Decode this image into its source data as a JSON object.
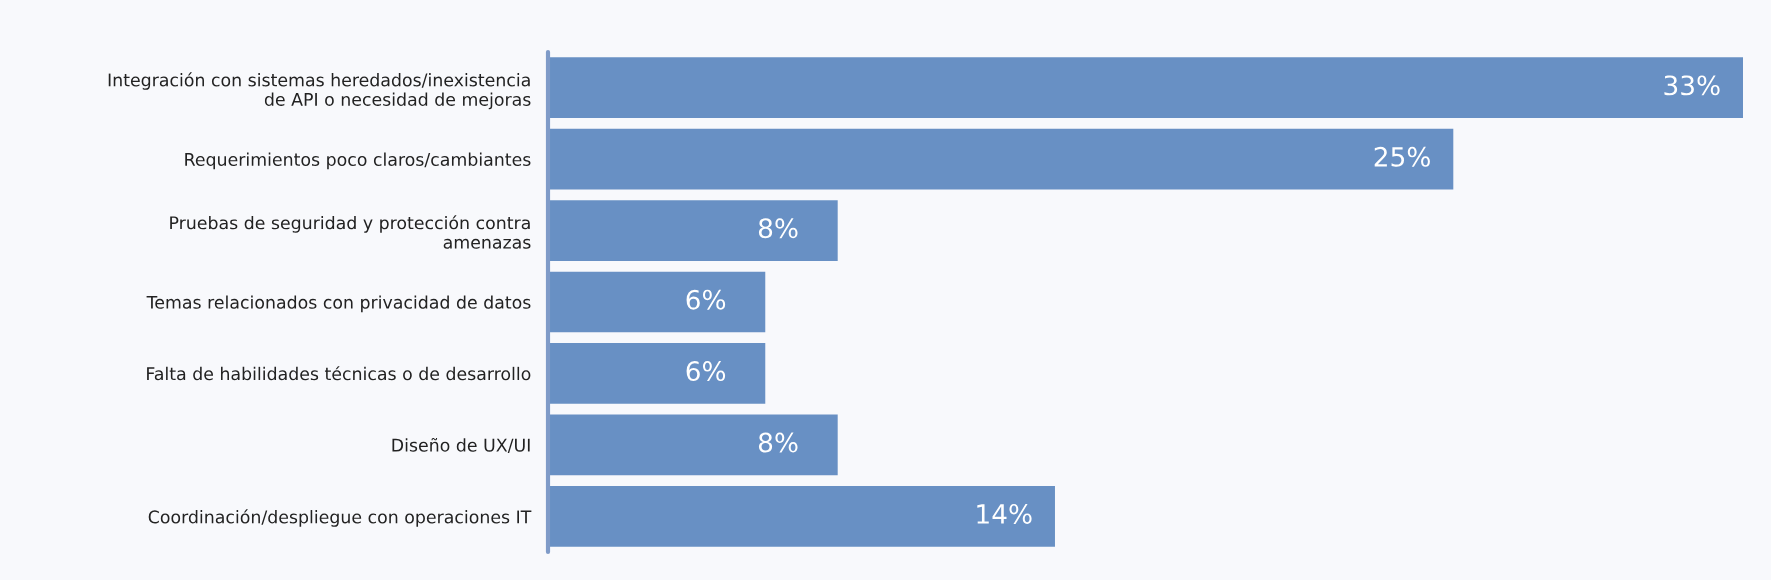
{
  "chart_data": {
    "type": "bar",
    "orientation": "horizontal",
    "categories": [
      "Integración con sistemas heredados/inexistencia\nde API o necesidad de mejoras",
      "Requerimientos poco claros/cambiantes",
      "Pruebas de seguridad y protección contra\namenazas",
      "Temas relacionados con privacidad de datos",
      "Falta de habilidades técnicas o de desarrollo",
      "Diseño de UX/UI",
      "Coordinación/despliegue con operaciones IT"
    ],
    "values": [
      33,
      25,
      8,
      6,
      6,
      8,
      14
    ],
    "value_labels": [
      "33%",
      "25%",
      "8%",
      "6%",
      "6%",
      "8%",
      "14%"
    ],
    "color": "#6890c4",
    "tick_labels": "y",
    "grid": false,
    "legend": false
  }
}
